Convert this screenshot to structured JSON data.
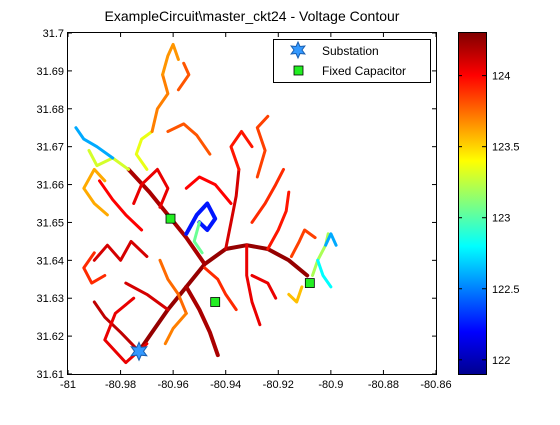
{
  "chart_data": {
    "type": "scatter",
    "title": "ExampleCircuit\\master_ckt24 - Voltage Contour",
    "xlabel": "",
    "ylabel": "",
    "xlim": [
      -81,
      -80.86
    ],
    "ylim": [
      31.61,
      31.7
    ],
    "x_ticks": [
      -81,
      -80.98,
      -80.96,
      -80.94,
      -80.92,
      -80.9,
      -80.88,
      -80.86
    ],
    "y_ticks": [
      31.61,
      31.62,
      31.63,
      31.64,
      31.65,
      31.66,
      31.67,
      31.68,
      31.69,
      31.7
    ],
    "x_tick_labels": [
      "-81",
      "-80.98",
      "-80.96",
      "-80.94",
      "-80.92",
      "-80.9",
      "-80.88",
      "-80.86"
    ],
    "y_tick_labels": [
      "31.61",
      "31.62",
      "31.63",
      "31.64",
      "31.65",
      "31.66",
      "31.67",
      "31.68",
      "31.69",
      "31.7"
    ],
    "grid": false,
    "legend_position": "top-right",
    "legend": [
      {
        "name": "Substation",
        "marker": "star",
        "color": "#3399ff"
      },
      {
        "name": "Fixed Capacitor",
        "marker": "square",
        "color": "#22ee22"
      }
    ],
    "series": [
      {
        "name": "Substation",
        "marker": "star",
        "points": [
          [
            -80.973,
            31.616
          ]
        ]
      },
      {
        "name": "Fixed Capacitor",
        "marker": "square",
        "points": [
          [
            -80.961,
            31.651
          ],
          [
            -80.944,
            31.629
          ],
          [
            -80.908,
            31.634
          ]
        ]
      }
    ],
    "colorbar": {
      "min": 121.9,
      "max": 124.3,
      "tick_values": [
        122,
        122.5,
        123,
        123.5,
        124
      ],
      "tick_labels": [
        "122",
        "122.5",
        "123",
        "123.5",
        "124"
      ],
      "colormap": "jet"
    },
    "feeder_lines": [
      {
        "v": 124.25,
        "w": 4,
        "pts": [
          [
            -80.973,
            31.616
          ],
          [
            -80.968,
            31.621
          ],
          [
            -80.962,
            31.627
          ],
          [
            -80.955,
            31.633
          ],
          [
            -80.948,
            31.639
          ],
          [
            -80.94,
            31.643
          ],
          [
            -80.932,
            31.644
          ],
          [
            -80.924,
            31.643
          ],
          [
            -80.916,
            31.64
          ],
          [
            -80.909,
            31.636
          ]
        ]
      },
      {
        "v": 124.2,
        "w": 4,
        "pts": [
          [
            -80.955,
            31.633
          ],
          [
            -80.95,
            31.627
          ],
          [
            -80.946,
            31.621
          ],
          [
            -80.943,
            31.615
          ]
        ]
      },
      {
        "v": 124.2,
        "w": 4,
        "pts": [
          [
            -80.948,
            31.639
          ],
          [
            -80.955,
            31.646
          ],
          [
            -80.962,
            31.652
          ],
          [
            -80.969,
            31.658
          ],
          [
            -80.977,
            31.664
          ]
        ]
      },
      {
        "v": 124.15,
        "w": 3,
        "pts": [
          [
            -80.973,
            31.616
          ],
          [
            -80.98,
            31.621
          ],
          [
            -80.986,
            31.625
          ],
          [
            -80.99,
            31.629
          ]
        ]
      },
      {
        "v": 124.1,
        "w": 3,
        "pts": [
          [
            -80.962,
            31.627
          ],
          [
            -80.97,
            31.631
          ],
          [
            -80.978,
            31.634
          ]
        ]
      },
      {
        "v": 124.05,
        "w": 3,
        "pts": [
          [
            -80.975,
            31.63
          ],
          [
            -80.982,
            31.626
          ],
          [
            -80.986,
            31.619
          ],
          [
            -80.978,
            31.613
          ],
          [
            -80.97,
            31.618
          ]
        ]
      },
      {
        "v": 124.1,
        "w": 3,
        "pts": [
          [
            -80.99,
            31.64
          ],
          [
            -80.985,
            31.644
          ],
          [
            -80.98,
            31.64
          ],
          [
            -80.976,
            31.645
          ],
          [
            -80.97,
            31.641
          ]
        ]
      },
      {
        "v": 124.0,
        "w": 3,
        "pts": [
          [
            -80.972,
            31.648
          ],
          [
            -80.978,
            31.652
          ],
          [
            -80.983,
            31.656
          ],
          [
            -80.988,
            31.661
          ]
        ]
      },
      {
        "v": 124.05,
        "w": 3,
        "pts": [
          [
            -80.975,
            31.655
          ],
          [
            -80.972,
            31.66
          ],
          [
            -80.966,
            31.664
          ],
          [
            -80.962,
            31.659
          ],
          [
            -80.965,
            31.654
          ]
        ]
      },
      {
        "v": 124.1,
        "w": 3,
        "pts": [
          [
            -80.94,
            31.643
          ],
          [
            -80.938,
            31.65
          ],
          [
            -80.936,
            31.657
          ],
          [
            -80.935,
            31.664
          ]
        ]
      },
      {
        "v": 124.05,
        "w": 3,
        "pts": [
          [
            -80.932,
            31.644
          ],
          [
            -80.932,
            31.636
          ],
          [
            -80.93,
            31.629
          ],
          [
            -80.927,
            31.623
          ]
        ]
      },
      {
        "v": 124.0,
        "w": 3,
        "pts": [
          [
            -80.938,
            31.655
          ],
          [
            -80.944,
            31.66
          ],
          [
            -80.95,
            31.662
          ],
          [
            -80.955,
            31.659
          ]
        ]
      },
      {
        "v": 123.95,
        "w": 3,
        "pts": [
          [
            -80.935,
            31.664
          ],
          [
            -80.938,
            31.67
          ],
          [
            -80.934,
            31.674
          ],
          [
            -80.93,
            31.67
          ]
        ]
      },
      {
        "v": 123.85,
        "w": 3,
        "pts": [
          [
            -80.928,
            31.662
          ],
          [
            -80.925,
            31.669
          ],
          [
            -80.928,
            31.675
          ],
          [
            -80.924,
            31.678
          ]
        ]
      },
      {
        "v": 123.8,
        "w": 3,
        "pts": [
          [
            -80.946,
            31.668
          ],
          [
            -80.951,
            31.673
          ],
          [
            -80.956,
            31.676
          ],
          [
            -80.962,
            31.674
          ]
        ]
      },
      {
        "v": 123.9,
        "w": 3,
        "pts": [
          [
            -80.93,
            31.65
          ],
          [
            -80.925,
            31.655
          ],
          [
            -80.921,
            31.66
          ],
          [
            -80.918,
            31.664
          ]
        ]
      },
      {
        "v": 123.95,
        "w": 3,
        "pts": [
          [
            -80.924,
            31.643
          ],
          [
            -80.92,
            31.648
          ],
          [
            -80.917,
            31.653
          ],
          [
            -80.916,
            31.658
          ]
        ]
      },
      {
        "v": 124.05,
        "w": 3,
        "pts": [
          [
            -80.93,
            31.636
          ],
          [
            -80.924,
            31.634
          ],
          [
            -80.921,
            31.63
          ]
        ]
      },
      {
        "v": 123.6,
        "w": 3,
        "pts": [
          [
            -80.985,
            31.652
          ],
          [
            -80.99,
            31.655
          ],
          [
            -80.994,
            31.659
          ],
          [
            -80.99,
            31.664
          ],
          [
            -80.986,
            31.661
          ]
        ]
      },
      {
        "v": 123.3,
        "w": 3,
        "pts": [
          [
            -80.977,
            31.664
          ],
          [
            -80.983,
            31.667
          ],
          [
            -80.989,
            31.665
          ],
          [
            -80.992,
            31.669
          ]
        ]
      },
      {
        "v": 122.6,
        "w": 3,
        "pts": [
          [
            -80.983,
            31.667
          ],
          [
            -80.989,
            31.67
          ],
          [
            -80.994,
            31.672
          ],
          [
            -80.997,
            31.675
          ]
        ]
      },
      {
        "v": 123.35,
        "w": 3,
        "pts": [
          [
            -80.97,
            31.664
          ],
          [
            -80.974,
            31.668
          ],
          [
            -80.972,
            31.672
          ],
          [
            -80.968,
            31.674
          ]
        ]
      },
      {
        "v": 123.7,
        "w": 3,
        "pts": [
          [
            -80.968,
            31.674
          ],
          [
            -80.966,
            31.68
          ],
          [
            -80.962,
            31.684
          ],
          [
            -80.964,
            31.689
          ]
        ]
      },
      {
        "v": 123.65,
        "w": 3,
        "pts": [
          [
            -80.964,
            31.689
          ],
          [
            -80.962,
            31.694
          ],
          [
            -80.96,
            31.697
          ],
          [
            -80.958,
            31.693
          ]
        ]
      },
      {
        "v": 123.8,
        "w": 3,
        "pts": [
          [
            -80.958,
            31.685
          ],
          [
            -80.954,
            31.689
          ],
          [
            -80.956,
            31.692
          ]
        ]
      },
      {
        "v": 122.25,
        "w": 4,
        "pts": [
          [
            -80.955,
            31.647
          ],
          [
            -80.951,
            31.652
          ],
          [
            -80.947,
            31.655
          ],
          [
            -80.944,
            31.651
          ],
          [
            -80.947,
            31.648
          ],
          [
            -80.95,
            31.65
          ]
        ]
      },
      {
        "v": 123.05,
        "w": 3,
        "pts": [
          [
            -80.95,
            31.65
          ],
          [
            -80.952,
            31.645
          ],
          [
            -80.949,
            31.642
          ]
        ]
      },
      {
        "v": 123.9,
        "w": 3,
        "pts": [
          [
            -80.99,
            31.642
          ],
          [
            -80.994,
            31.638
          ],
          [
            -80.991,
            31.634
          ],
          [
            -80.986,
            31.636
          ]
        ]
      },
      {
        "v": 123.75,
        "w": 3,
        "pts": [
          [
            -80.965,
            31.64
          ],
          [
            -80.962,
            31.635
          ],
          [
            -80.958,
            31.631
          ],
          [
            -80.955,
            31.626
          ]
        ]
      },
      {
        "v": 123.7,
        "w": 3,
        "pts": [
          [
            -80.955,
            31.626
          ],
          [
            -80.96,
            31.622
          ],
          [
            -80.963,
            31.618
          ]
        ]
      },
      {
        "v": 123.9,
        "w": 3,
        "pts": [
          [
            -80.948,
            31.638
          ],
          [
            -80.943,
            31.635
          ],
          [
            -80.94,
            31.631
          ],
          [
            -80.936,
            31.627
          ]
        ]
      },
      {
        "v": 123.85,
        "w": 3,
        "pts": [
          [
            -80.915,
            31.641
          ],
          [
            -80.912,
            31.645
          ],
          [
            -80.91,
            31.648
          ],
          [
            -80.906,
            31.646
          ]
        ]
      },
      {
        "v": 123.2,
        "w": 3,
        "pts": [
          [
            -80.907,
            31.636
          ],
          [
            -80.905,
            31.64
          ],
          [
            -80.902,
            31.644
          ],
          [
            -80.901,
            31.647
          ]
        ]
      },
      {
        "v": 122.8,
        "w": 3,
        "pts": [
          [
            -80.905,
            31.64
          ],
          [
            -80.903,
            31.636
          ],
          [
            -80.9,
            31.633
          ]
        ]
      },
      {
        "v": 122.6,
        "w": 3,
        "pts": [
          [
            -80.902,
            31.644
          ],
          [
            -80.9,
            31.647
          ],
          [
            -80.898,
            31.644
          ]
        ]
      },
      {
        "v": 123.55,
        "w": 3,
        "pts": [
          [
            -80.911,
            31.633
          ],
          [
            -80.913,
            31.629
          ],
          [
            -80.916,
            31.631
          ]
        ]
      }
    ]
  }
}
